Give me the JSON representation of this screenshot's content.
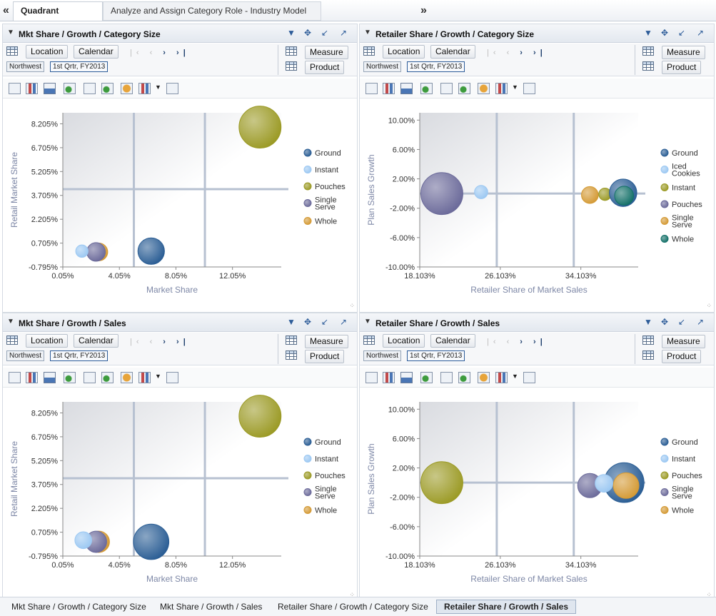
{
  "app": {
    "nav_left": "«",
    "nav_right": "»",
    "tabs": [
      {
        "label": "Quadrant Analysis"
      },
      {
        "label": "Analyze and Assign Category Role - Industry Model A"
      }
    ]
  },
  "panels": [
    {
      "title": "Mkt Share / Growth / Category Size",
      "edge": {
        "location": "Location",
        "calendar": "Calendar",
        "measure": "Measure",
        "product": "Product",
        "chip1": "Northwest",
        "chip2": "1st Qrtr, FY2013"
      },
      "chart_data": {
        "type": "scatter",
        "xlabel": "Market Share",
        "ylabel": "Retail Market Share",
        "xticks": [
          "0.05%",
          "4.05%",
          "8.05%",
          "12.05%"
        ],
        "yticks": [
          "8.205%",
          "6.705%",
          "5.205%",
          "3.705%",
          "2.205%",
          "0.705%",
          "-0.795%"
        ],
        "xlim": [
          0.05,
          15.5
        ],
        "ylim": [
          -0.795,
          8.9
        ],
        "quadrant_x": 10.1,
        "quadrant_y": 4.1,
        "legend": [
          {
            "name": "Ground",
            "color": "#2a5d94"
          },
          {
            "name": "Instant",
            "color": "#9cc8f2"
          },
          {
            "name": "Pouches",
            "color": "#9b9a25"
          },
          {
            "name": "Single Serve",
            "color": "#6b6a9a"
          },
          {
            "name": "Whole",
            "color": "#d49a35"
          }
        ],
        "points": [
          {
            "series": "Pouches",
            "x": 14.0,
            "y": 8.0,
            "size": 0.95
          },
          {
            "series": "Ground",
            "x": 6.3,
            "y": 0.2,
            "size": 0.6
          },
          {
            "series": "Whole",
            "x": 2.6,
            "y": 0.15,
            "size": 0.4
          },
          {
            "series": "Single Serve",
            "x": 2.4,
            "y": 0.15,
            "size": 0.42
          },
          {
            "series": "Instant",
            "x": 1.4,
            "y": 0.2,
            "size": 0.28
          }
        ]
      }
    },
    {
      "title": "Retailer Share / Growth / Category Size",
      "edge": {
        "location": "Location",
        "calendar": "Calendar",
        "measure": "Measure",
        "product": "Product",
        "chip1": "Northwest",
        "chip2": "1st Qrtr, FY2013"
      },
      "chart_data": {
        "type": "scatter",
        "xlabel": "Retailer Share of Market Sales",
        "ylabel": "Plan Sales Growth",
        "xticks": [
          "18.103%",
          "26.103%",
          "34.103%"
        ],
        "yticks": [
          "10.00%",
          "6.00%",
          "2.00%",
          "-2.00%",
          "-6.00%",
          "-10.00%"
        ],
        "xlim": [
          18.103,
          39.8
        ],
        "ylim": [
          -10.0,
          11.0
        ],
        "quadrant_x": 33.4,
        "quadrant_y": 0.0,
        "legend": [
          {
            "name": "Ground",
            "color": "#2a5d94"
          },
          {
            "name": "Iced Cookies",
            "color": "#9cc8f2"
          },
          {
            "name": "Instant",
            "color": "#9b9a25"
          },
          {
            "name": "Pouches",
            "color": "#6b6a9a"
          },
          {
            "name": "Single Serve",
            "color": "#d49a35"
          },
          {
            "name": "Whole",
            "color": "#137068"
          }
        ],
        "points": [
          {
            "series": "Pouches",
            "x": 20.3,
            "y": 0.0,
            "size": 0.95
          },
          {
            "series": "Iced Cookies",
            "x": 24.2,
            "y": 0.2,
            "size": 0.3
          },
          {
            "series": "Single Serve",
            "x": 35.0,
            "y": -0.2,
            "size": 0.38
          },
          {
            "series": "Instant",
            "x": 36.5,
            "y": -0.1,
            "size": 0.28
          },
          {
            "series": "Ground",
            "x": 38.3,
            "y": 0.1,
            "size": 0.62
          },
          {
            "series": "Whole",
            "x": 38.4,
            "y": -0.3,
            "size": 0.43
          }
        ]
      }
    },
    {
      "title": "Mkt Share / Growth / Sales",
      "edge": {
        "location": "Location",
        "calendar": "Calendar",
        "measure": "Measure",
        "product": "Product",
        "chip1": "Northwest",
        "chip2": "1st Qrtr, FY2013"
      },
      "chart_data": {
        "type": "scatter",
        "xlabel": "Market Share",
        "ylabel": "Retail Market Share",
        "xticks": [
          "0.05%",
          "4.05%",
          "8.05%",
          "12.05%"
        ],
        "yticks": [
          "8.205%",
          "6.705%",
          "5.205%",
          "3.705%",
          "2.205%",
          "0.705%",
          "-0.795%"
        ],
        "xlim": [
          0.05,
          15.5
        ],
        "ylim": [
          -0.795,
          8.9
        ],
        "quadrant_x": 10.1,
        "quadrant_y": 4.1,
        "legend": [
          {
            "name": "Ground",
            "color": "#2a5d94"
          },
          {
            "name": "Instant",
            "color": "#9cc8f2"
          },
          {
            "name": "Pouches",
            "color": "#9b9a25"
          },
          {
            "name": "Single Serve",
            "color": "#6b6a9a"
          },
          {
            "name": "Whole",
            "color": "#d49a35"
          }
        ],
        "points": [
          {
            "series": "Pouches",
            "x": 14.0,
            "y": 8.0,
            "size": 0.95
          },
          {
            "series": "Ground",
            "x": 6.3,
            "y": 0.1,
            "size": 0.8
          },
          {
            "series": "Whole",
            "x": 2.6,
            "y": 0.1,
            "size": 0.48
          },
          {
            "series": "Single Serve",
            "x": 2.4,
            "y": 0.1,
            "size": 0.48
          },
          {
            "series": "Instant",
            "x": 1.5,
            "y": 0.2,
            "size": 0.38
          }
        ]
      }
    },
    {
      "title": "Retailer Share / Growth / Sales",
      "edge": {
        "location": "Location",
        "calendar": "Calendar",
        "measure": "Measure",
        "product": "Product",
        "chip1": "Northwest",
        "chip2": "1st Qrtr, FY2013"
      },
      "chart_data": {
        "type": "scatter",
        "xlabel": "Retailer Share of Market Sales",
        "ylabel": "Plan Sales Growth",
        "xticks": [
          "18.103%",
          "26.103%",
          "34.103%"
        ],
        "yticks": [
          "10.00%",
          "6.00%",
          "2.00%",
          "-2.00%",
          "-6.00%",
          "-10.00%"
        ],
        "xlim": [
          18.103,
          39.8
        ],
        "ylim": [
          -10.0,
          11.0
        ],
        "quadrant_x": 33.4,
        "quadrant_y": 0.0,
        "legend": [
          {
            "name": "Ground",
            "color": "#2a5d94"
          },
          {
            "name": "Instant",
            "color": "#9cc8f2"
          },
          {
            "name": "Pouches",
            "color": "#9b9a25"
          },
          {
            "name": "Single Serve",
            "color": "#6b6a9a"
          },
          {
            "name": "Whole",
            "color": "#d49a35"
          }
        ],
        "points": [
          {
            "series": "Pouches",
            "x": 20.3,
            "y": 0.0,
            "size": 0.95
          },
          {
            "series": "Ground",
            "x": 38.4,
            "y": 0.0,
            "size": 0.9
          },
          {
            "series": "Single Serve",
            "x": 35.0,
            "y": -0.4,
            "size": 0.55
          },
          {
            "series": "Whole",
            "x": 38.6,
            "y": -0.4,
            "size": 0.58
          },
          {
            "series": "Instant",
            "x": 36.4,
            "y": -0.1,
            "size": 0.4
          }
        ]
      }
    }
  ],
  "bottom_tabs": [
    {
      "label": "Mkt Share / Growth / Category Size"
    },
    {
      "label": "Mkt Share / Growth / Sales"
    },
    {
      "label": "Retailer Share / Growth / Category Size"
    },
    {
      "label": "Retailer Share / Growth / Sales"
    }
  ]
}
